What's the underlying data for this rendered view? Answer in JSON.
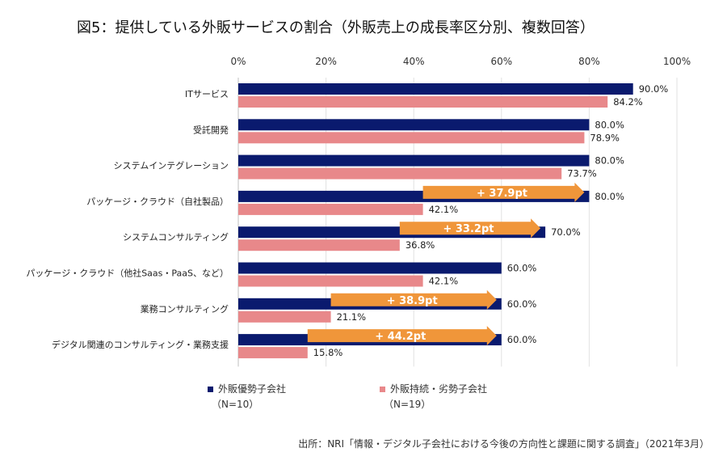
{
  "chart_data": {
    "type": "bar",
    "orientation": "horizontal",
    "title": "図5：提供している外販サービスの割合（外販売上の成長率区分別、複数回答）",
    "xlim": [
      0,
      100
    ],
    "x_ticks": [
      "0%",
      "20%",
      "40%",
      "60%",
      "80%",
      "100%"
    ],
    "grid": true,
    "categories": [
      "ITサービス",
      "受託開発",
      "システムインテグレーション",
      "パッケージ・クラウド（自社製品）",
      "システムコンサルティング",
      "パッケージ・クラウド（他社Saas・PaaS、など）",
      "業務コンサルティング",
      "デジタル関連のコンサルティング・業務支援"
    ],
    "series": [
      {
        "name": "外販優勢子会社",
        "n_label": "（N=10）",
        "color": "#0a1a6e",
        "values": [
          90.0,
          80.0,
          80.0,
          80.0,
          70.0,
          60.0,
          60.0,
          60.0
        ],
        "labels": [
          "90.0%",
          "80.0%",
          "80.0%",
          "80.0%",
          "70.0%",
          "60.0%",
          "60.0%",
          "60.0%"
        ]
      },
      {
        "name": "外販持続・劣勢子会社",
        "n_label": "（N=19）",
        "color": "#e8888a",
        "values": [
          84.2,
          78.9,
          73.7,
          42.1,
          36.8,
          42.1,
          21.1,
          15.8
        ],
        "labels": [
          "84.2%",
          "78.9%",
          "73.7%",
          "42.1%",
          "36.8%",
          "42.1%",
          "21.1%",
          "15.8%"
        ]
      }
    ],
    "annotations": [
      {
        "category_index": 3,
        "text": "+ 37.9pt",
        "from": 42.1,
        "to": 80.0
      },
      {
        "category_index": 4,
        "text": "+ 33.2pt",
        "from": 36.8,
        "to": 70.0
      },
      {
        "category_index": 6,
        "text": "+ 38.9pt",
        "from": 21.1,
        "to": 60.0
      },
      {
        "category_index": 7,
        "text": "+ 44.2pt",
        "from": 15.8,
        "to": 60.0
      }
    ],
    "arrow_color": "#f0963a",
    "legend_position": "bottom"
  },
  "source": "出所：NRI「情報・デジタル子会社における今後の方向性と課題に関する調査」（2021年3月）"
}
